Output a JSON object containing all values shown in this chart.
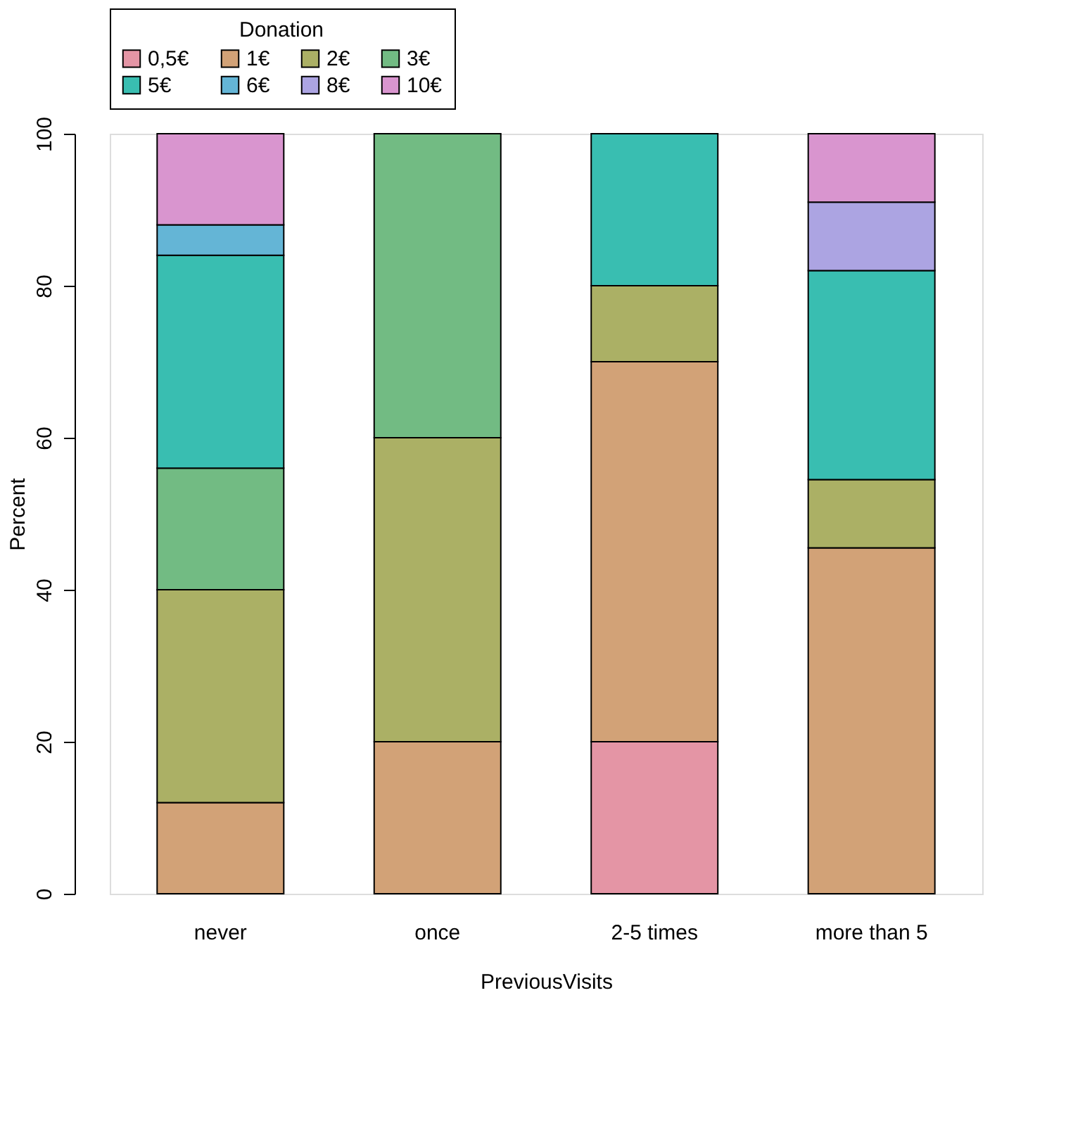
{
  "chart_data": {
    "type": "bar",
    "stacked": true,
    "xlabel": "PreviousVisits",
    "ylabel": "Percent",
    "legend_title": "Donation",
    "legend": "top",
    "grid": false,
    "categories": [
      "never",
      "once",
      "2-5 times",
      "more than 5"
    ],
    "ylim": [
      0,
      100
    ],
    "yticks": [
      0,
      20,
      40,
      60,
      80,
      100
    ],
    "series": [
      {
        "name": "0,5€",
        "color": "#e495a5",
        "values": [
          null,
          null,
          20,
          null
        ]
      },
      {
        "name": "1€",
        "color": "#d2a277",
        "values": [
          12,
          20,
          50,
          45.5
        ]
      },
      {
        "name": "2€",
        "color": "#abb065",
        "values": [
          28,
          40,
          10,
          9
        ]
      },
      {
        "name": "3€",
        "color": "#72bb83",
        "values": [
          16,
          40,
          null,
          null
        ]
      },
      {
        "name": "5€",
        "color": "#39beb1",
        "values": [
          28,
          null,
          20,
          27.5
        ]
      },
      {
        "name": "6€",
        "color": "#64b5d6",
        "values": [
          4,
          null,
          null,
          null
        ]
      },
      {
        "name": "8€",
        "color": "#aca4e2",
        "values": [
          null,
          null,
          null,
          9
        ]
      },
      {
        "name": "10€",
        "color": "#d995cf",
        "values": [
          12,
          null,
          null,
          9
        ]
      }
    ]
  }
}
